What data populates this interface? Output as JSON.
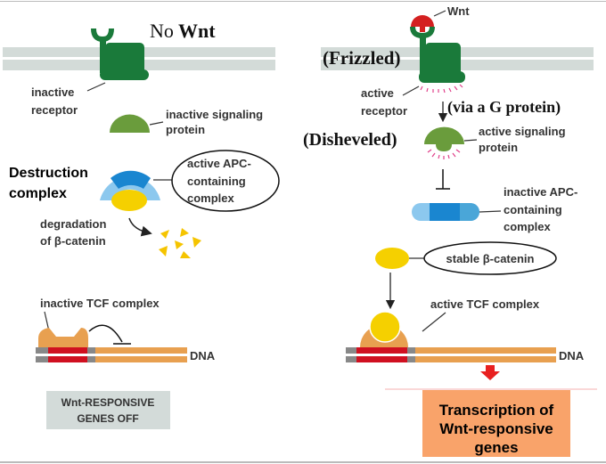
{
  "left": {
    "title_no": "No",
    "title_wnt": "Wnt",
    "receptor_label": [
      "inactive",
      "receptor"
    ],
    "signaling_label": [
      "inactive signaling",
      "protein"
    ],
    "destruction_label": [
      "Destruction",
      "complex"
    ],
    "apc_label": [
      "active APC-",
      "containing",
      "complex"
    ],
    "degradation_label": [
      "degradation",
      "of β-catenin"
    ],
    "tcf_label": "inactive TCF complex",
    "dna_label": "DNA",
    "status_box": [
      "Wnt-RESPONSIVE",
      "GENES OFF"
    ]
  },
  "right": {
    "wnt_label": "Wnt",
    "frizzled": "(Frizzled)",
    "receptor_label": [
      "active",
      "receptor"
    ],
    "g_protein": "(via a G protein)",
    "disheveled": "(Disheveled)",
    "signaling_label": [
      "active signaling",
      "protein"
    ],
    "apc_label": [
      "inactive APC-",
      "containing",
      "complex"
    ],
    "catenin_label": "stable β-catenin",
    "tcf_label": "active TCF complex",
    "dna_label": "DNA",
    "transcription_box": [
      "Transcription of",
      "Wnt-responsive",
      "genes"
    ]
  },
  "colors": {
    "membrane": "#d3dbd8",
    "receptor": "#1a7a3a",
    "signaling": "#6a9c3c",
    "wnt": "#d42020",
    "apc_blue": "#1a86d0",
    "beta_catenin": "#f5d000",
    "tcf": "#e8a050",
    "dna_red": "#d01020",
    "transcription_box": "#f9a36a"
  }
}
